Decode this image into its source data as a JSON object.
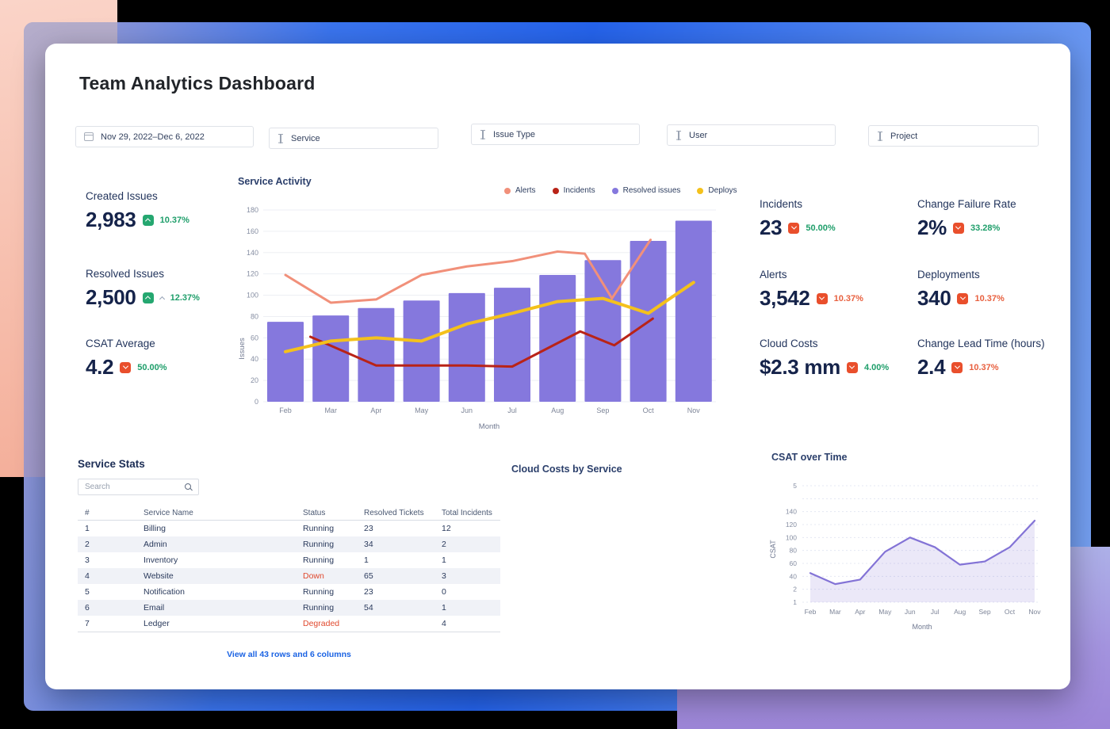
{
  "page": {
    "title": "Team Analytics Dashboard"
  },
  "colors": {
    "accent_blue": "#2563eb",
    "link": "#1b63e3",
    "badge_up": "#25a770",
    "badge_down": "#e94f2c",
    "delta_green": "#1e9e6a",
    "delta_red": "#e8603f",
    "bar_purple": "#8578dd",
    "alerts_salmon": "#f1907a",
    "incidents_red": "#b92317",
    "deploys_yellow": "#f4c11c",
    "csat_line": "#8373d6",
    "status_bad_red": "#e0492e"
  },
  "filters": [
    {
      "icon": "calendar-icon",
      "label": "Nov 29, 2022–Dec 6, 2022"
    },
    {
      "icon": "text-cursor-icon",
      "label": "Service"
    },
    {
      "icon": "text-cursor-icon",
      "label": "Issue Type"
    },
    {
      "icon": "text-cursor-icon",
      "label": "User"
    },
    {
      "icon": "text-cursor-icon",
      "label": "Project"
    }
  ],
  "kpis_left": [
    {
      "label": "Created Issues",
      "value": "2,983",
      "direction": "up",
      "delta": "10.37%",
      "delta_color": "green",
      "extra_caret": false
    },
    {
      "label": "Resolved Issues",
      "value": "2,500",
      "direction": "up",
      "delta": "12.37%",
      "delta_color": "green",
      "extra_caret": true
    },
    {
      "label": "CSAT Average",
      "value": "4.2",
      "direction": "down",
      "delta": "50.00%",
      "delta_color": "green",
      "extra_caret": false
    }
  ],
  "kpis_right": [
    {
      "label": "Incidents",
      "value": "23",
      "direction": "down",
      "delta": "50.00%",
      "delta_color": "green",
      "extra_caret": false
    },
    {
      "label": "Change Failure Rate",
      "value": "2%",
      "direction": "down",
      "delta": "33.28%",
      "delta_color": "green",
      "extra_caret": false
    },
    {
      "label": "Alerts",
      "value": "3,542",
      "direction": "down",
      "delta": "10.37%",
      "delta_color": "red",
      "extra_caret": false
    },
    {
      "label": "Deployments",
      "value": "340",
      "direction": "down",
      "delta": "10.37%",
      "delta_color": "red",
      "extra_caret": false
    },
    {
      "label": "Cloud Costs",
      "value": "$2.3 mm",
      "direction": "down",
      "delta": "4.00%",
      "delta_color": "green",
      "extra_caret": false
    },
    {
      "label": "Change Lead Time (hours)",
      "value": "2.4",
      "direction": "down",
      "delta": "10.37%",
      "delta_color": "red",
      "extra_caret": false
    }
  ],
  "panels": {
    "cloud_costs_title": "Cloud Costs by Service"
  },
  "chart_data": [
    {
      "type": "bar",
      "title": "Service Activity",
      "xlabel": "Month",
      "ylabel": "Issues",
      "categories": [
        "Feb",
        "Mar",
        "Apr",
        "May",
        "Jun",
        "Jul",
        "Aug",
        "Sep",
        "Oct",
        "Nov"
      ],
      "ylim": [
        0,
        180
      ],
      "yticks": [
        0,
        20,
        40,
        60,
        80,
        100,
        120,
        140,
        160,
        180
      ],
      "grid": true,
      "legend_position": "top-right",
      "legend": [
        {
          "label": "Alerts",
          "color": "#f1907a"
        },
        {
          "label": "Incidents",
          "color": "#b92317"
        },
        {
          "label": "Resolved issues",
          "color": "#8578dd"
        },
        {
          "label": "Deploys",
          "color": "#f4c11c"
        }
      ],
      "series": [
        {
          "name": "Resolved issues",
          "type": "bar",
          "color": "#8578dd",
          "values": [
            75,
            81,
            88,
            95,
            102,
            107,
            119,
            133,
            151,
            170
          ]
        },
        {
          "name": "Alerts",
          "type": "line",
          "color": "#f1907a",
          "width": 3,
          "points": [
            [
              0,
              119
            ],
            [
              1,
              93
            ],
            [
              2,
              96
            ],
            [
              3,
              119
            ],
            [
              4,
              127
            ],
            [
              5,
              132
            ],
            [
              6,
              141
            ],
            [
              6.6,
              139
            ],
            [
              7.2,
              97
            ],
            [
              8.05,
              152
            ]
          ]
        },
        {
          "name": "Incidents",
          "type": "line",
          "color": "#b92317",
          "width": 3,
          "points": [
            [
              0.55,
              61
            ],
            [
              2,
              34
            ],
            [
              3,
              34
            ],
            [
              4,
              34
            ],
            [
              5,
              33
            ],
            [
              6.5,
              66
            ],
            [
              7.25,
              53
            ],
            [
              8.1,
              78
            ]
          ]
        },
        {
          "name": "Deploys",
          "type": "line",
          "color": "#f4c11c",
          "width": 4,
          "points": [
            [
              0,
              47
            ],
            [
              1,
              57
            ],
            [
              2,
              60
            ],
            [
              3,
              57
            ],
            [
              4,
              73
            ],
            [
              5,
              83
            ],
            [
              6,
              94
            ],
            [
              7,
              97
            ],
            [
              8,
              83
            ],
            [
              9,
              112
            ]
          ]
        }
      ]
    },
    {
      "type": "area",
      "title": "CSAT over Time",
      "xlabel": "Month",
      "ylabel": "CSAT",
      "categories": [
        "Feb",
        "Mar",
        "Apr",
        "May",
        "Jun",
        "Jul",
        "Aug",
        "Sep",
        "Oct",
        "Nov"
      ],
      "values": [
        45,
        28,
        35,
        78,
        100,
        85,
        58,
        63,
        85,
        126
      ],
      "ylim": [
        0,
        180
      ],
      "ytick_labels": [
        "1",
        "2",
        "40",
        "60",
        "80",
        "100",
        "120",
        "140",
        "",
        "5"
      ],
      "grid": true,
      "line_color": "#8373d6",
      "fill_color": "rgba(131,115,214,0.16)"
    }
  ],
  "service_stats": {
    "title": "Service Stats",
    "search_placeholder": "Search",
    "columns": [
      "#",
      "Service Name",
      "Status",
      "Resolved Tickets",
      "Total Incidents"
    ],
    "rows": [
      {
        "num": "1",
        "name": "Billing",
        "status": "Running",
        "resolved": "23",
        "incidents": "12"
      },
      {
        "num": "2",
        "name": "Admin",
        "status": "Running",
        "resolved": "34",
        "incidents": "2"
      },
      {
        "num": "3",
        "name": "Inventory",
        "status": "Running",
        "resolved": "1",
        "incidents": "1"
      },
      {
        "num": "4",
        "name": " Website",
        "status": "Down",
        "resolved": "65",
        "incidents": "3"
      },
      {
        "num": "5",
        "name": "Notification",
        "status": "Running",
        "resolved": "23",
        "incidents": "0"
      },
      {
        "num": "6",
        "name": "Email",
        "status": "Running",
        "resolved": "54",
        "incidents": "1"
      },
      {
        "num": "7",
        "name": "Ledger",
        "status": "Degraded",
        "resolved": "",
        "incidents": "4"
      }
    ],
    "footer_link": "View all 43 rows and 6 columns"
  }
}
